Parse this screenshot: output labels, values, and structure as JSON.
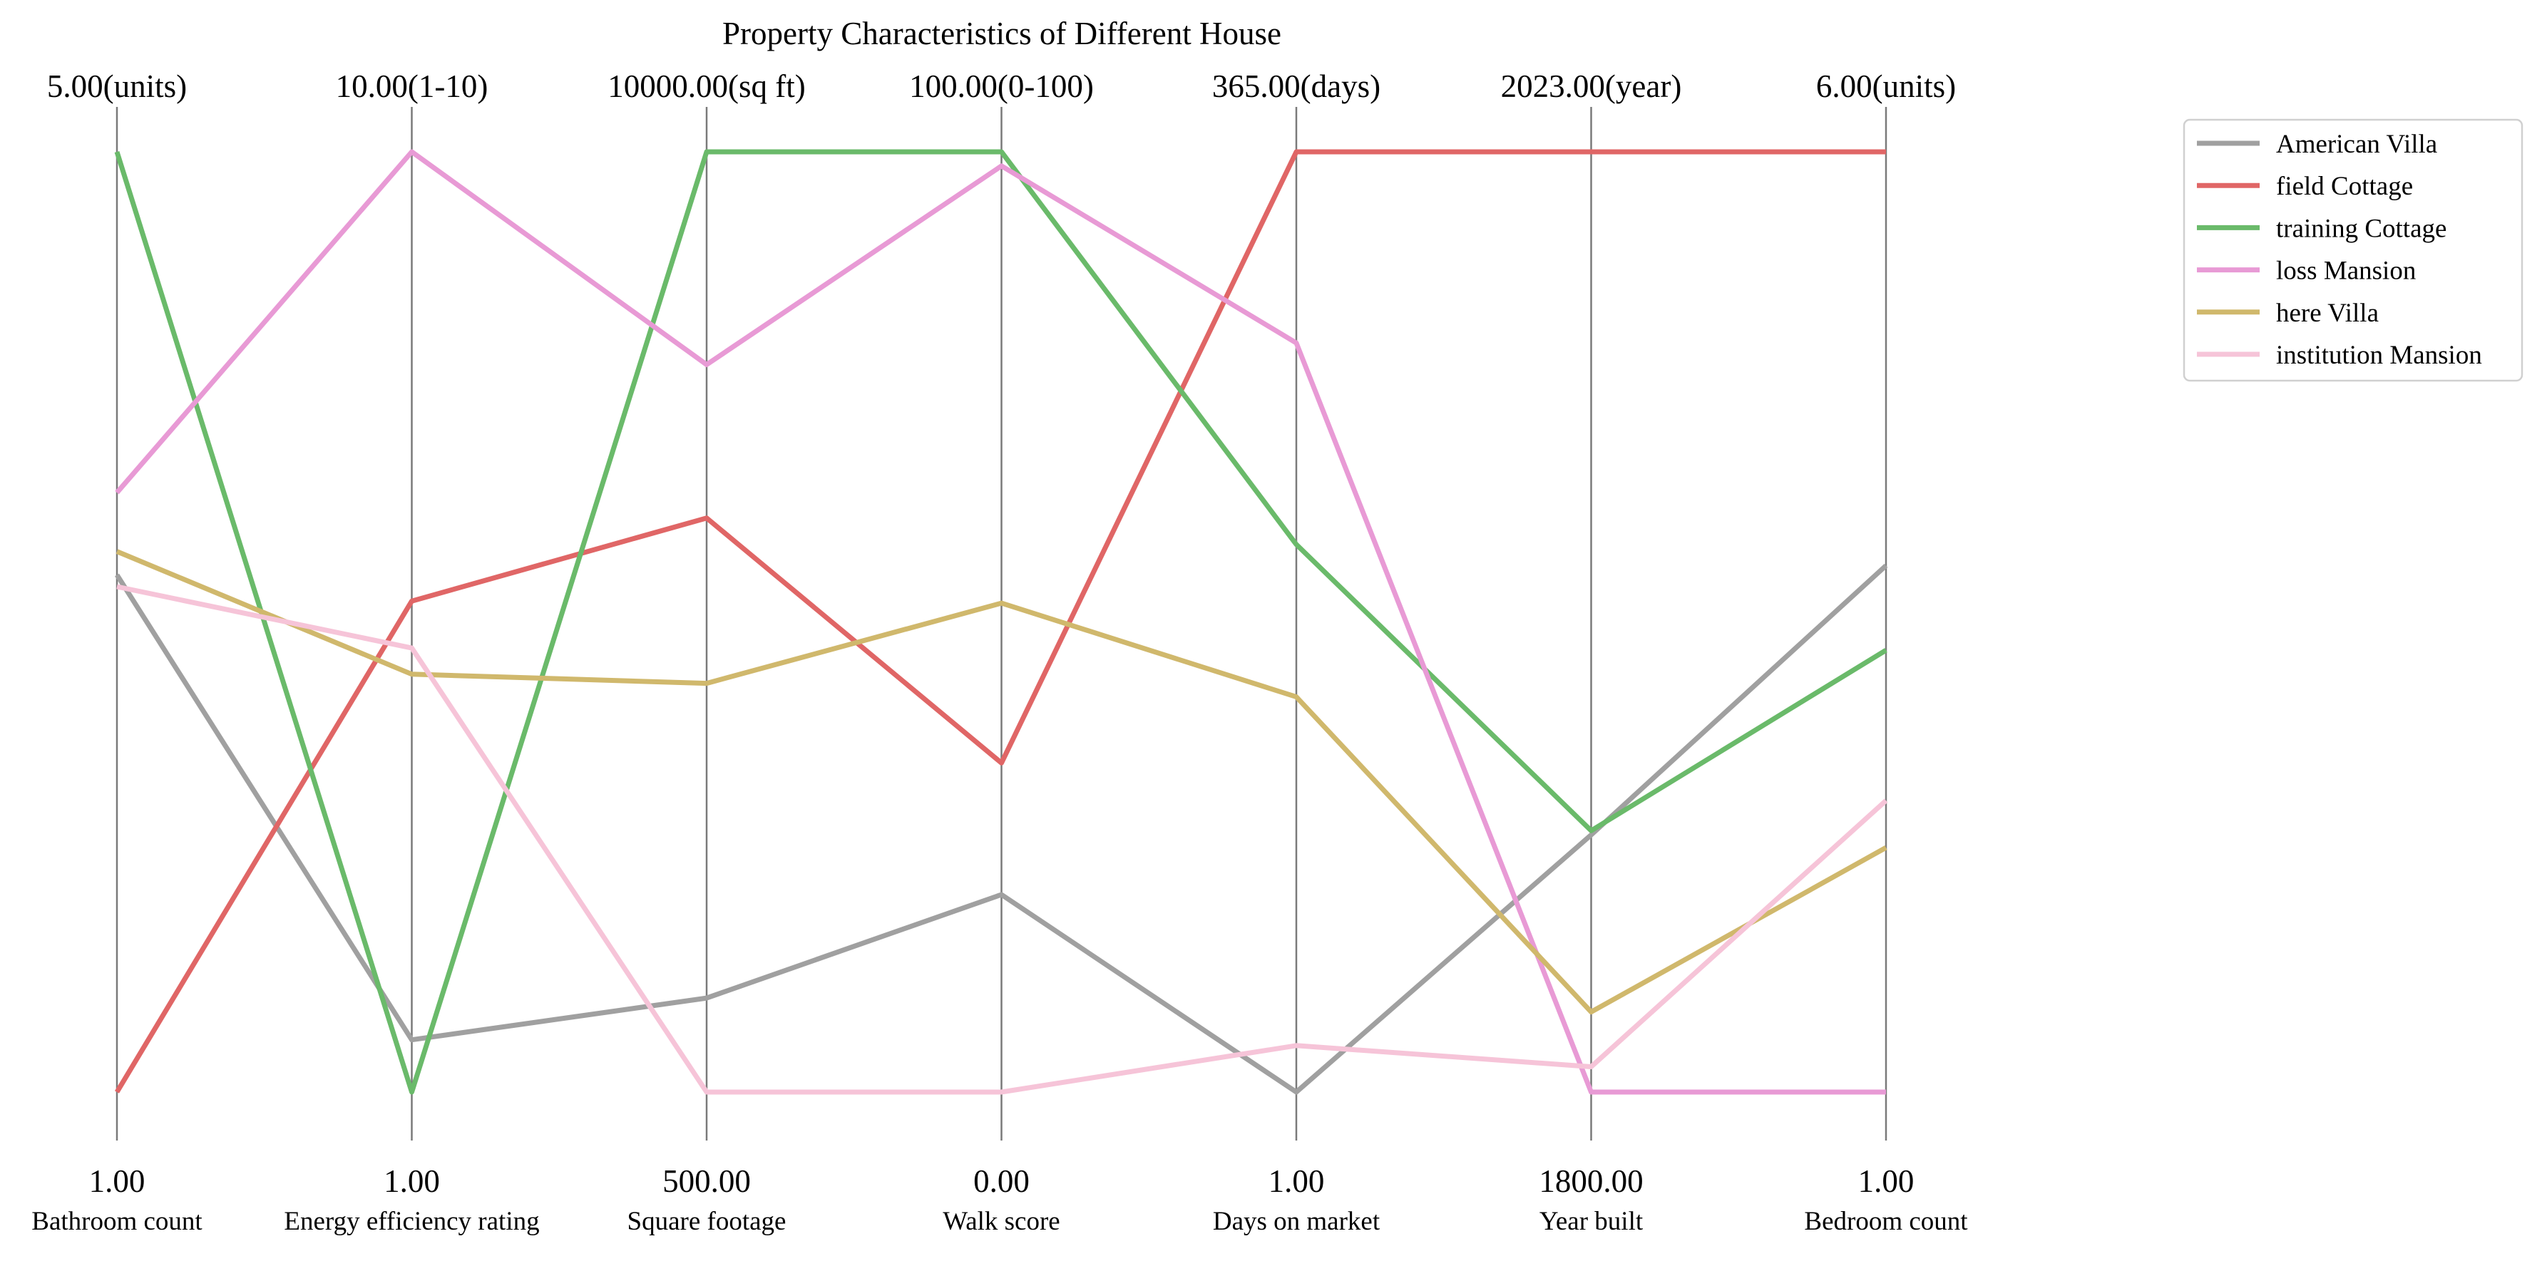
{
  "chart_data": {
    "type": "parallel_coordinates",
    "title": "Property Characteristics of Different House",
    "axes": [
      {
        "label": "Bathroom count",
        "min": 1,
        "max": 5,
        "min_label": "1.00",
        "max_label": "5.00(units)"
      },
      {
        "label": "Energy efficiency rating",
        "min": 1,
        "max": 10,
        "min_label": "1.00",
        "max_label": "10.00(1-10)"
      },
      {
        "label": "Square footage",
        "min": 500,
        "max": 10000,
        "min_label": "500.00",
        "max_label": "10000.00(sq ft)"
      },
      {
        "label": "Walk score",
        "min": 0,
        "max": 100,
        "min_label": "0.00",
        "max_label": "100.00(0-100)"
      },
      {
        "label": "Days on market",
        "min": 1,
        "max": 365,
        "min_label": "1.00",
        "max_label": "365.00(days)"
      },
      {
        "label": "Year built",
        "min": 1800,
        "max": 2023,
        "min_label": "1800.00",
        "max_label": "2023.00(year)"
      },
      {
        "label": "Bedroom count",
        "min": 1,
        "max": 6,
        "min_label": "1.00",
        "max_label": "6.00(units)"
      }
    ],
    "series": [
      {
        "name": "American Villa",
        "color": "#a0a0a0",
        "values": [
          3.2,
          1.5,
          1450,
          21,
          1,
          1861,
          3.8
        ]
      },
      {
        "name": "field Cottage",
        "color": "#e06666",
        "values": [
          1.0,
          5.7,
          6300,
          35,
          365,
          2023,
          6.0
        ]
      },
      {
        "name": "training Cottage",
        "color": "#6aba6a",
        "values": [
          5.0,
          1.0,
          10000,
          100,
          213,
          1862,
          3.35
        ]
      },
      {
        "name": "loss Mansion",
        "color": "#e89ad5",
        "values": [
          3.55,
          10.0,
          7850,
          98.5,
          291,
          1800,
          1.0
        ]
      },
      {
        "name": "here Villa",
        "color": "#d0b86c",
        "values": [
          3.3,
          5.0,
          4630,
          52,
          154,
          1819,
          2.3
        ]
      },
      {
        "name": "institution Mansion",
        "color": "#f6c4d8",
        "values": [
          3.15,
          5.25,
          500,
          0,
          19,
          1806,
          2.55
        ]
      }
    ],
    "legend": {
      "position": "top-right"
    }
  }
}
